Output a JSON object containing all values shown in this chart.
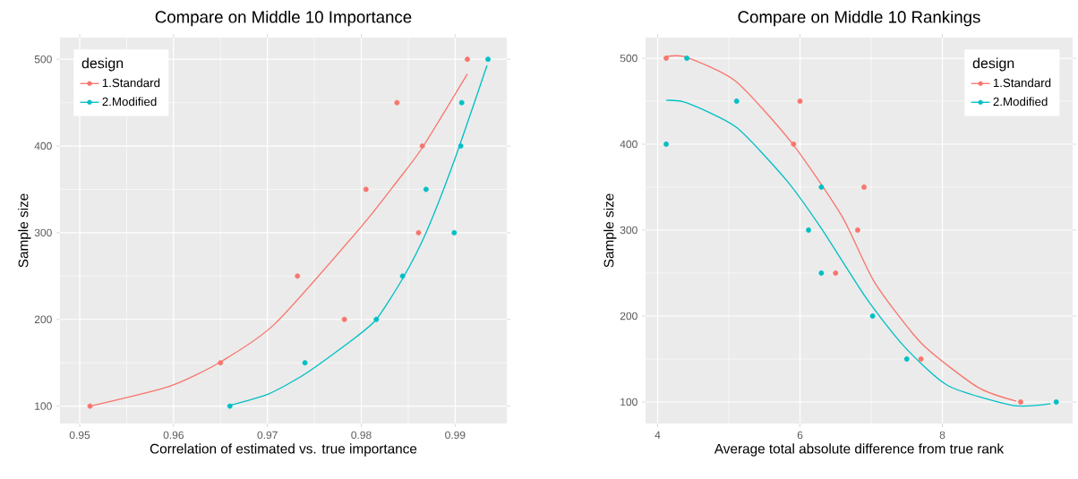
{
  "chart_data": [
    {
      "type": "scatter",
      "title": "Compare on Middle 10 Importance",
      "xlabel": "Correlation of estimated vs. true importance",
      "ylabel": "Sample size",
      "legend_title": "design",
      "legend": "top left",
      "grid": true,
      "xlim": [
        0.9479,
        0.9955
      ],
      "ylim": [
        80,
        525
      ],
      "xticks": [
        0.95,
        0.96,
        0.97,
        0.98,
        0.99
      ],
      "yticks": [
        100,
        200,
        300,
        400,
        500
      ],
      "series": [
        {
          "name": "1.Standard",
          "color": "#f8766d",
          "x": [
            0.9511,
            0.965,
            0.9782,
            0.9732,
            0.9861,
            0.9805,
            0.9865,
            0.9838,
            0.9913
          ],
          "values": [
            100,
            150,
            200,
            250,
            300,
            350,
            400,
            450,
            500
          ]
        },
        {
          "name": "2.Modified",
          "color": "#00bfc4",
          "x": [
            0.966,
            0.974,
            0.9816,
            0.9844,
            0.9899,
            0.9869,
            0.9906,
            0.9907,
            0.9935
          ],
          "values": [
            100,
            150,
            200,
            250,
            300,
            350,
            400,
            450,
            500
          ]
        },
        {
          "type": "line",
          "color": "#f8766d",
          "x": [
            0.9511,
            0.9596,
            0.965,
            0.9708,
            0.98,
            0.9838,
            0.9865,
            0.9913
          ],
          "values": [
            100,
            123,
            151,
            195,
            307,
            359,
            398,
            483
          ]
        },
        {
          "type": "line",
          "color": "#00bfc4",
          "x": [
            0.966,
            0.9701,
            0.974,
            0.979,
            0.9816,
            0.9844,
            0.9869,
            0.9899,
            0.9934
          ],
          "values": [
            101,
            114,
            137,
            176,
            200,
            247,
            300,
            383,
            493
          ]
        }
      ]
    },
    {
      "type": "scatter",
      "title": "Compare on Middle 10 Rankings",
      "xlabel": "Average total absolute difference from true rank",
      "ylabel": "Sample size",
      "legend_title": "design",
      "legend": "top right",
      "grid": true,
      "xlim": [
        3.83,
        9.83
      ],
      "ylim": [
        75,
        524
      ],
      "xticks": [
        4,
        6,
        8
      ],
      "yticks": [
        100,
        200,
        300,
        400,
        500
      ],
      "series": [
        {
          "name": "1.Standard",
          "color": "#f8766d",
          "x": [
            9.1,
            7.7,
            7.0,
            6.5,
            6.81,
            6.9,
            5.91,
            6.0,
            4.12
          ],
          "values": [
            100,
            150,
            null,
            250,
            300,
            350,
            400,
            450,
            500
          ]
        },
        {
          "name": "2.Modified",
          "color": "#00bfc4",
          "x": [
            9.6,
            7.5,
            7.02,
            6.3,
            6.12,
            6.3,
            4.12,
            5.11,
            4.41
          ],
          "values": [
            100,
            150,
            200,
            250,
            300,
            350,
            400,
            450,
            500
          ]
        },
        {
          "type": "line",
          "color": "#f8766d",
          "x": [
            4.12,
            4.41,
            5.1,
            5.89,
            6.59,
            7.05,
            7.71,
            8.5,
            9.04
          ],
          "values": [
            502,
            501,
            473,
            401,
            316,
            239,
            168,
            117,
            101
          ]
        },
        {
          "type": "line",
          "marker": "none",
          "color": "#00bfc4",
          "x": [
            4.12,
            4.41,
            5.1,
            5.81,
            6.3,
            6.93,
            7.46,
            8.08,
            8.99,
            9.52
          ],
          "values": [
            451,
            448,
            420,
            358,
            302,
            221,
            165,
            119,
            96,
            98
          ]
        }
      ]
    }
  ]
}
